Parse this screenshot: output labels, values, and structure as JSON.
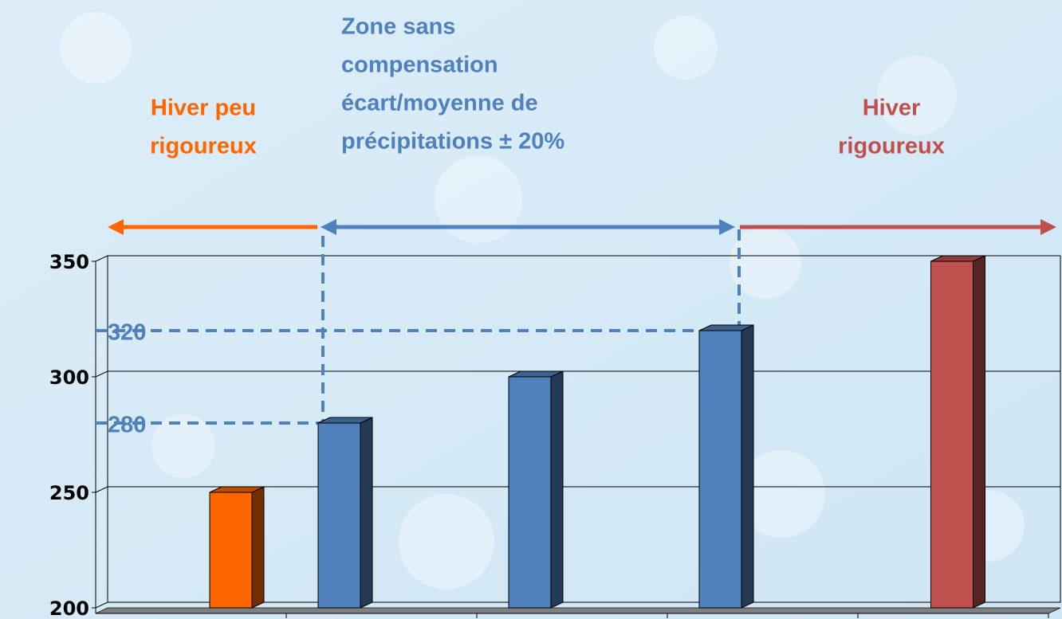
{
  "chart_data": {
    "type": "bar",
    "annotations": [
      {
        "lines": [
          "Hiver peu",
          "rigoureux"
        ],
        "color": "#ff6600"
      },
      {
        "lines": [
          "Zone sans",
          "compensation",
          "écart/moyenne de",
          "précipitations ± 20%"
        ],
        "color": "#4f81bd"
      },
      {
        "lines": [
          "Hiver",
          "rigoureux"
        ],
        "color": "#c0504d"
      }
    ],
    "categories": [
      null,
      null,
      null,
      null,
      null
    ],
    "series": [
      {
        "color": "#4f81bd",
        "values": [
          null,
          280,
          300,
          320,
          null
        ]
      },
      {
        "color": "#c0504d",
        "values": [
          null,
          null,
          null,
          null,
          350
        ]
      },
      {
        "color": "#ff6600",
        "values": [
          250,
          null,
          null,
          null,
          null
        ]
      }
    ],
    "ylim": [
      200,
      350
    ],
    "yticks": [
      200,
      250,
      300,
      350
    ],
    "grid": true,
    "reference_values": [
      280,
      320
    ],
    "reference_color": "#4f81bd"
  }
}
